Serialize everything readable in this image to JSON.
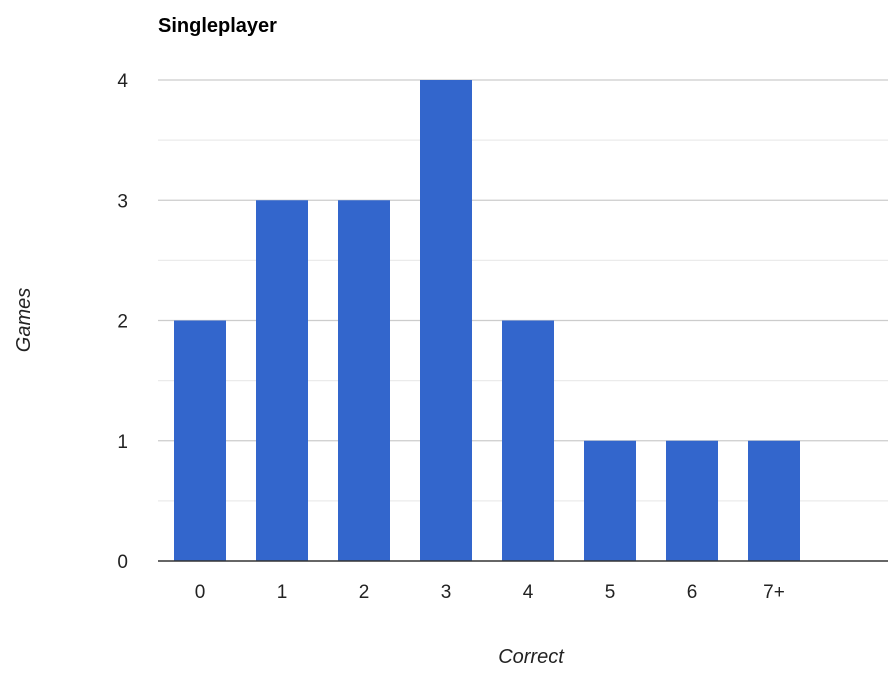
{
  "chart_data": {
    "type": "bar",
    "title": "Singleplayer",
    "xlabel": "Correct",
    "ylabel": "Games",
    "categories": [
      "0",
      "1",
      "2",
      "3",
      "4",
      "5",
      "6",
      "7+"
    ],
    "values": [
      2,
      3,
      3,
      4,
      2,
      1,
      1,
      1
    ],
    "ylim": [
      0,
      4
    ],
    "yticks": [
      "0",
      "1",
      "2",
      "3",
      "4"
    ],
    "grid": true,
    "legend": "none",
    "colors": {
      "bar": "#3366cc",
      "major_grid": "#cccccc",
      "minor_grid": "#ebebeb",
      "baseline": "#333333"
    }
  }
}
